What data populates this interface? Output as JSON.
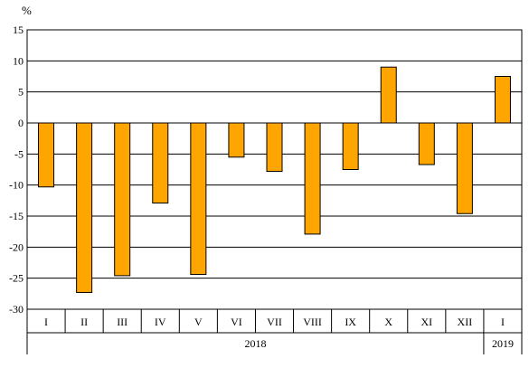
{
  "chart_data": {
    "type": "bar",
    "ylabel": "%",
    "ylim": [
      -30,
      15
    ],
    "ytick_step": 5,
    "grid": true,
    "bar_color": "#FFA500",
    "bar_stroke": "#000000",
    "categories": [
      "I",
      "II",
      "III",
      "IV",
      "V",
      "VI",
      "VII",
      "VIII",
      "IX",
      "X",
      "XI",
      "XII",
      "I"
    ],
    "values": [
      -10.3,
      -27.3,
      -24.6,
      -12.9,
      -24.4,
      -5.5,
      -7.8,
      -17.9,
      -7.5,
      9.0,
      -6.7,
      -14.6,
      7.5
    ],
    "year_groups": [
      {
        "label": "2018",
        "count": 12
      },
      {
        "label": "2019",
        "count": 1
      }
    ]
  }
}
